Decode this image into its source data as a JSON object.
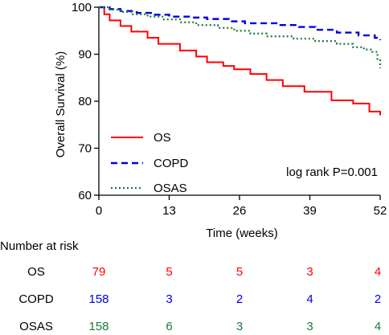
{
  "chart_data": {
    "type": "line",
    "title": "",
    "xlabel": "Time (weeks)",
    "ylabel": "Overall Survival (%)",
    "xlim": [
      0,
      52
    ],
    "ylim": [
      60,
      100
    ],
    "xticks": [
      0,
      13,
      26,
      39,
      52
    ],
    "yticks": [
      60,
      70,
      80,
      90,
      100
    ],
    "grid": false,
    "legend_position": "bottom-left",
    "annotation": "log rank  P=0.001",
    "series": [
      {
        "name": "OS",
        "color": "#ff0000",
        "style": "solid",
        "step": true,
        "x": [
          0,
          1,
          2,
          4,
          6,
          9,
          11,
          15,
          18,
          20,
          23,
          25,
          28,
          31,
          34,
          38,
          43,
          47,
          50,
          52
        ],
        "y": [
          100,
          98.5,
          97.2,
          96.0,
          94.8,
          93.5,
          92.2,
          90.8,
          89.5,
          88.3,
          87.5,
          86.8,
          85.8,
          84.5,
          83.2,
          82.0,
          80.2,
          79.5,
          77.8,
          77.0
        ]
      },
      {
        "name": "COPD",
        "color": "#0000dd",
        "style": "dashed",
        "step": true,
        "x": [
          0,
          2,
          4,
          7,
          10,
          13,
          17,
          20,
          24,
          27,
          33,
          37,
          40,
          44,
          48,
          51,
          52
        ],
        "y": [
          100,
          99.6,
          99.2,
          98.8,
          98.4,
          98.0,
          97.8,
          97.5,
          97.0,
          96.6,
          96.2,
          95.8,
          95.2,
          94.6,
          94.0,
          93.5,
          93.0
        ]
      },
      {
        "name": "OSAS",
        "color": "#1a7a3c",
        "style": "dotted",
        "step": true,
        "x": [
          0,
          2,
          4,
          6,
          9,
          12,
          15,
          18,
          22,
          25,
          28,
          31,
          36,
          40,
          44,
          47,
          49,
          50.5,
          51.5,
          52
        ],
        "y": [
          100,
          99.5,
          99.0,
          98.5,
          98.0,
          97.4,
          96.8,
          96.2,
          95.6,
          95.0,
          94.4,
          93.8,
          93.3,
          92.8,
          92.2,
          91.5,
          91.0,
          90.5,
          89.0,
          87.0
        ]
      }
    ]
  },
  "risk_table": {
    "title": "Number at risk",
    "rows": [
      {
        "label": "OS",
        "color": "#ff0000",
        "values": [
          "79",
          "5",
          "5",
          "3",
          "4"
        ]
      },
      {
        "label": "COPD",
        "color": "#0000dd",
        "values": [
          "158",
          "3",
          "2",
          "4",
          "2"
        ]
      },
      {
        "label": "OSAS",
        "color": "#1a7a3c",
        "values": [
          "158",
          "6",
          "3",
          "3",
          "4"
        ]
      }
    ]
  }
}
